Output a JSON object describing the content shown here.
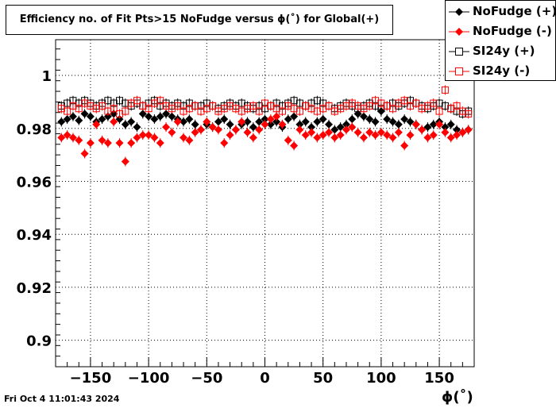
{
  "chart_data": {
    "type": "scatter",
    "title": "Efficiency no. of Fit Pts>15 NoFudge versus ϕ(˚) for Global(+)",
    "xlabel": "ϕ(˚)",
    "ylabel": "",
    "xlim": [
      -180,
      180
    ],
    "ylim": [
      0.89,
      1.0135
    ],
    "x_ticks": [
      -150,
      -100,
      -50,
      0,
      50,
      100,
      150
    ],
    "x_tick_labels": [
      "−150",
      "−100",
      "−50",
      "0",
      "50",
      "100",
      "150"
    ],
    "y_ticks": [
      0.9,
      0.92,
      0.94,
      0.96,
      0.98,
      1.0
    ],
    "y_tick_labels": [
      "0.9",
      "0.92",
      "0.94",
      "0.96",
      "0.98",
      "1"
    ],
    "grid": true,
    "legend_position": "top-right",
    "series": [
      {
        "name": "NoFudge (+)",
        "color": "#000000",
        "marker": "filled-diamond",
        "x": [
          -175,
          -170,
          -165,
          -160,
          -155,
          -150,
          -145,
          -140,
          -135,
          -130,
          -125,
          -120,
          -115,
          -110,
          -105,
          -100,
          -95,
          -90,
          -85,
          -80,
          -75,
          -70,
          -65,
          -60,
          -55,
          -50,
          -45,
          -40,
          -35,
          -30,
          -25,
          -20,
          -15,
          -10,
          -5,
          0,
          5,
          10,
          15,
          20,
          25,
          30,
          35,
          40,
          45,
          50,
          55,
          60,
          65,
          70,
          75,
          80,
          85,
          90,
          95,
          100,
          105,
          110,
          115,
          120,
          125,
          130,
          135,
          140,
          145,
          150,
          155,
          160,
          165,
          170,
          175
        ],
        "y": [
          0.9825,
          0.9835,
          0.9845,
          0.983,
          0.9855,
          0.9845,
          0.9825,
          0.9835,
          0.9845,
          0.9855,
          0.9835,
          0.9815,
          0.9825,
          0.9805,
          0.9855,
          0.9845,
          0.9835,
          0.9845,
          0.9855,
          0.9845,
          0.9835,
          0.9825,
          0.9835,
          0.9815,
          0.9795,
          0.9815,
          0.9805,
          0.9825,
          0.9835,
          0.9815,
          0.9795,
          0.9815,
          0.9825,
          0.9805,
          0.9825,
          0.9835,
          0.9815,
          0.9825,
          0.9805,
          0.9835,
          0.9845,
          0.9815,
          0.9825,
          0.9805,
          0.9825,
          0.9835,
          0.9815,
          0.9795,
          0.9805,
          0.9815,
          0.9835,
          0.9855,
          0.9845,
          0.9835,
          0.9825,
          0.9865,
          0.9835,
          0.9825,
          0.9815,
          0.9835,
          0.9825,
          0.9815,
          0.9795,
          0.9805,
          0.9815,
          0.9825,
          0.9805,
          0.9815,
          0.9795,
          0.9785,
          0.9795
        ]
      },
      {
        "name": "NoFudge (-)",
        "color": "#ff0000",
        "marker": "filled-diamond",
        "x": [
          -175,
          -170,
          -165,
          -160,
          -155,
          -150,
          -145,
          -140,
          -135,
          -130,
          -125,
          -120,
          -115,
          -110,
          -105,
          -100,
          -95,
          -90,
          -85,
          -80,
          -75,
          -70,
          -65,
          -60,
          -55,
          -50,
          -45,
          -40,
          -35,
          -30,
          -25,
          -20,
          -15,
          -10,
          -5,
          0,
          5,
          10,
          15,
          20,
          25,
          30,
          35,
          40,
          45,
          50,
          55,
          60,
          65,
          70,
          75,
          80,
          85,
          90,
          95,
          100,
          105,
          110,
          115,
          120,
          125,
          130,
          135,
          140,
          145,
          150,
          155,
          160,
          165,
          170,
          175
        ],
        "y": [
          0.9765,
          0.9775,
          0.9765,
          0.9755,
          0.9705,
          0.9745,
          0.9815,
          0.9755,
          0.9745,
          0.9825,
          0.9745,
          0.9675,
          0.9745,
          0.9765,
          0.9775,
          0.9775,
          0.9765,
          0.9745,
          0.9805,
          0.9785,
          0.9825,
          0.9765,
          0.9755,
          0.9785,
          0.9795,
          0.9825,
          0.9805,
          0.9795,
          0.9745,
          0.9775,
          0.9795,
          0.9825,
          0.9785,
          0.9765,
          0.9795,
          0.9815,
          0.9835,
          0.9845,
          0.9815,
          0.9755,
          0.9735,
          0.9795,
          0.9775,
          0.9785,
          0.9765,
          0.9775,
          0.9785,
          0.9765,
          0.9775,
          0.9795,
          0.9805,
          0.9785,
          0.9765,
          0.9785,
          0.9775,
          0.9785,
          0.9775,
          0.9765,
          0.9785,
          0.9735,
          0.9775,
          0.9815,
          0.9795,
          0.9765,
          0.9775,
          0.9815,
          0.9785,
          0.9765,
          0.9775,
          0.9785,
          0.9795
        ]
      },
      {
        "name": "SI24y (+)",
        "color": "#000000",
        "marker": "open-square",
        "x": [
          -175,
          -170,
          -165,
          -160,
          -155,
          -150,
          -145,
          -140,
          -135,
          -130,
          -125,
          -120,
          -115,
          -110,
          -105,
          -100,
          -95,
          -90,
          -85,
          -80,
          -75,
          -70,
          -65,
          -60,
          -55,
          -50,
          -45,
          -40,
          -35,
          -30,
          -25,
          -20,
          -15,
          -10,
          -5,
          0,
          5,
          10,
          15,
          20,
          25,
          30,
          35,
          40,
          45,
          50,
          55,
          60,
          65,
          70,
          75,
          80,
          85,
          90,
          95,
          100,
          105,
          110,
          115,
          120,
          125,
          130,
          135,
          140,
          145,
          150,
          155,
          160,
          165,
          170,
          175
        ],
        "y": [
          0.9885,
          0.9895,
          0.9905,
          0.9895,
          0.9905,
          0.9895,
          0.9885,
          0.9895,
          0.9905,
          0.9895,
          0.9905,
          0.9895,
          0.9885,
          0.9895,
          0.9885,
          0.9895,
          0.9905,
          0.9885,
          0.9895,
          0.9885,
          0.9895,
          0.9885,
          0.9895,
          0.9885,
          0.9885,
          0.9895,
          0.9885,
          0.9875,
          0.9885,
          0.9895,
          0.9885,
          0.9895,
          0.9885,
          0.9875,
          0.9885,
          0.9875,
          0.9885,
          0.9895,
          0.9885,
          0.9895,
          0.9905,
          0.9895,
          0.9885,
          0.9895,
          0.9905,
          0.9895,
          0.9885,
          0.9875,
          0.9885,
          0.9895,
          0.9885,
          0.9875,
          0.9885,
          0.9895,
          0.9885,
          0.9875,
          0.9885,
          0.9895,
          0.9885,
          0.9895,
          0.9905,
          0.9895,
          0.9885,
          0.9875,
          0.9885,
          0.9895,
          0.9885,
          0.9875,
          0.9865,
          0.9855,
          0.9865
        ]
      },
      {
        "name": "SI24y (-)",
        "color": "#ff0000",
        "marker": "open-square",
        "x": [
          -175,
          -170,
          -165,
          -160,
          -155,
          -150,
          -145,
          -140,
          -135,
          -130,
          -125,
          -120,
          -115,
          -110,
          -105,
          -100,
          -95,
          -90,
          -85,
          -80,
          -75,
          -70,
          -65,
          -60,
          -55,
          -50,
          -45,
          -40,
          -35,
          -30,
          -25,
          -20,
          -15,
          -10,
          -5,
          0,
          5,
          10,
          15,
          20,
          25,
          30,
          35,
          40,
          45,
          50,
          55,
          60,
          65,
          70,
          75,
          80,
          85,
          90,
          95,
          100,
          105,
          110,
          115,
          120,
          125,
          130,
          135,
          140,
          145,
          150,
          155,
          160,
          165,
          170,
          175
        ],
        "y": [
          0.9875,
          0.9865,
          0.9885,
          0.9875,
          0.9895,
          0.9885,
          0.9875,
          0.9885,
          0.9865,
          0.9875,
          0.9855,
          0.9865,
          0.9895,
          0.9905,
          0.9885,
          0.9875,
          0.9895,
          0.9905,
          0.9885,
          0.9875,
          0.9885,
          0.9865,
          0.9875,
          0.9885,
          0.9865,
          0.9875,
          0.9885,
          0.9865,
          0.9875,
          0.9885,
          0.9875,
          0.9865,
          0.9875,
          0.9885,
          0.9865,
          0.9895,
          0.9885,
          0.9875,
          0.9865,
          0.9885,
          0.9875,
          0.9865,
          0.9885,
          0.9875,
          0.9865,
          0.9875,
          0.9885,
          0.9865,
          0.9875,
          0.9885,
          0.9895,
          0.9885,
          0.9875,
          0.9885,
          0.9905,
          0.9895,
          0.9885,
          0.9875,
          0.9895,
          0.9905,
          0.9885,
          0.9895,
          0.9875,
          0.9885,
          0.9895,
          0.9865,
          0.9945,
          0.9875,
          0.9885,
          0.9865,
          0.9855
        ]
      }
    ]
  },
  "timestamp": "Fri Oct  4 11:01:43 2024"
}
